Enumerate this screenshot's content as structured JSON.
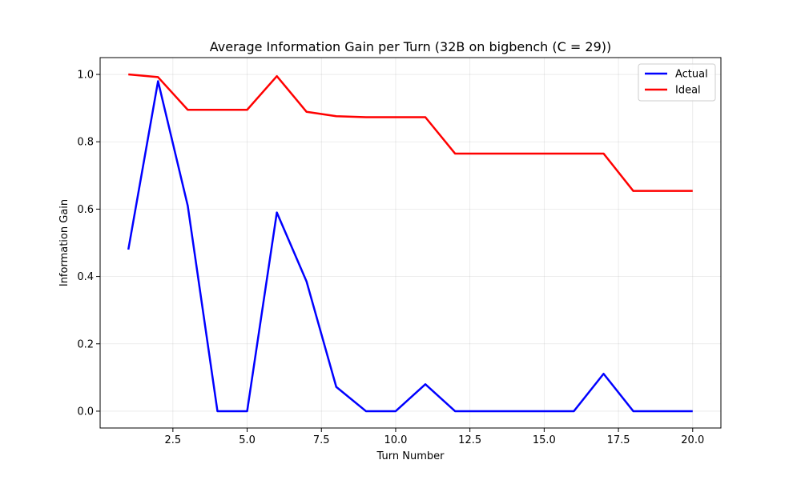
{
  "chart_data": {
    "type": "line",
    "title": "Average Information Gain per Turn (32B on bigbench (C = 29))",
    "xlabel": "Turn Number",
    "ylabel": "Information Gain",
    "xlim": [
      0.05,
      20.95
    ],
    "ylim": [
      -0.05,
      1.05
    ],
    "xticks": [
      2.5,
      5.0,
      7.5,
      10.0,
      12.5,
      15.0,
      17.5,
      20.0
    ],
    "xtick_labels": [
      "2.5",
      "5.0",
      "7.5",
      "10.0",
      "12.5",
      "15.0",
      "17.5",
      "20.0"
    ],
    "yticks": [
      0.0,
      0.2,
      0.4,
      0.6,
      0.8,
      1.0
    ],
    "ytick_labels": [
      "0.0",
      "0.2",
      "0.4",
      "0.6",
      "0.8",
      "1.0"
    ],
    "grid": true,
    "legend": "top-right",
    "x": [
      1,
      2,
      3,
      4,
      5,
      6,
      7,
      8,
      9,
      10,
      11,
      12,
      13,
      14,
      15,
      16,
      17,
      18,
      19,
      20
    ],
    "series": [
      {
        "name": "Actual",
        "color": "#0000ff",
        "values": [
          0.48,
          0.98,
          0.61,
          0.0,
          0.0,
          0.59,
          0.385,
          0.072,
          0.0,
          0.0,
          0.08,
          0.0,
          0.0,
          0.0,
          0.0,
          0.0,
          0.111,
          0.0,
          0.0,
          0.0
        ]
      },
      {
        "name": "Ideal",
        "color": "#ff0000",
        "values": [
          1.0,
          0.992,
          0.895,
          0.895,
          0.895,
          0.995,
          0.889,
          0.876,
          0.873,
          0.873,
          0.873,
          0.765,
          0.765,
          0.765,
          0.765,
          0.765,
          0.765,
          0.654,
          0.654,
          0.654
        ]
      }
    ]
  }
}
